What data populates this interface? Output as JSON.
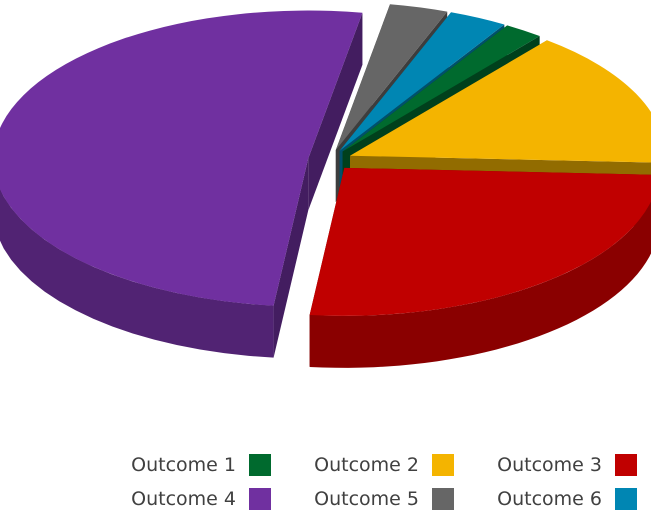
{
  "chart_data": {
    "type": "pie",
    "title": "",
    "style": "3d-exploded",
    "series": [
      {
        "name": "Outcome 1",
        "value": 2,
        "color": "#006a2e"
      },
      {
        "name": "Outcome 2",
        "value": 15,
        "color": "#f4b400"
      },
      {
        "name": "Outcome 3",
        "value": 26,
        "color": "#c00000"
      },
      {
        "name": "Outcome 4",
        "value": 51,
        "color": "#7030a0"
      },
      {
        "name": "Outcome 5",
        "value": 3,
        "color": "#666666"
      },
      {
        "name": "Outcome 6",
        "value": 3,
        "color": "#0086b3"
      }
    ],
    "legend_position": "bottom-right"
  }
}
